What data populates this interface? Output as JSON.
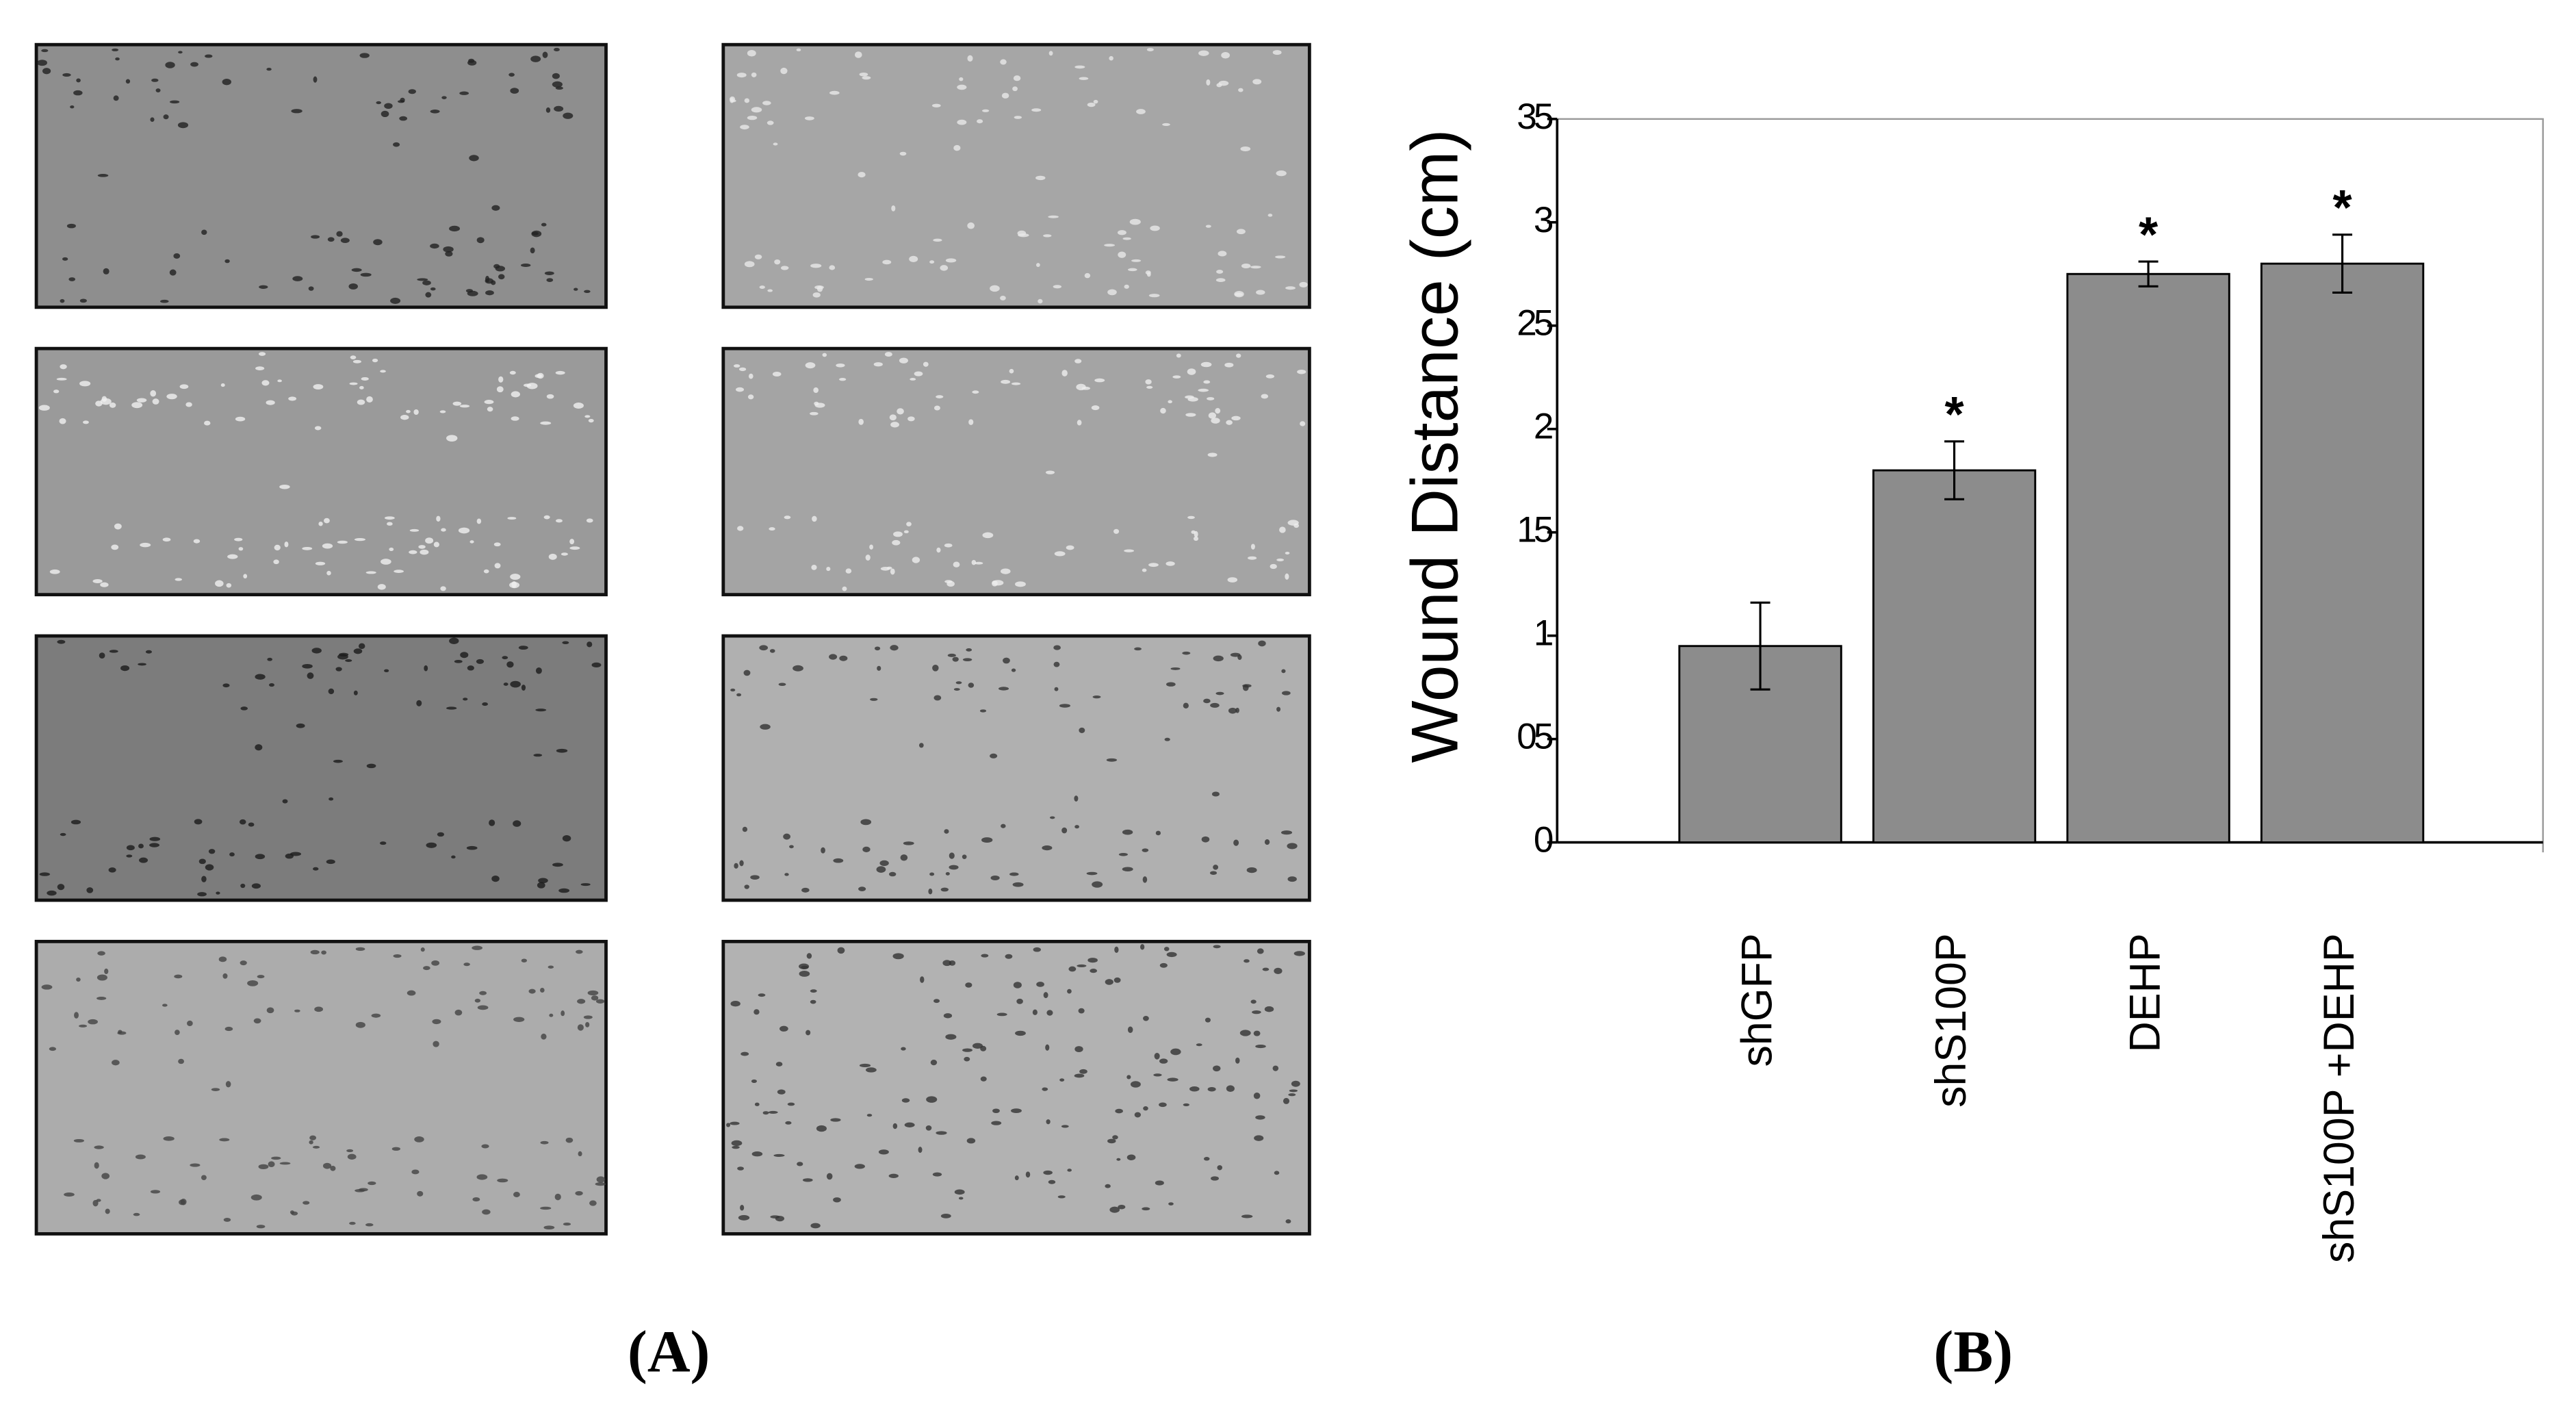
{
  "chart_data": {
    "type": "bar",
    "y_label": "Wound Distance (cm)",
    "categories": [
      "shGFP",
      "shS100P",
      "DEHP",
      "shS100P +DEHP"
    ],
    "values": [
      0.95,
      1.8,
      2.75,
      2.8
    ],
    "errors": [
      0.21,
      0.14,
      0.06,
      0.14
    ],
    "markers": [
      null,
      "*",
      "*",
      "*"
    ],
    "color": "#8c8c8c",
    "ylim": [
      0,
      3.5
    ],
    "yticks": [
      0,
      {
        "value": 0.5,
        "label": "05"
      },
      1,
      {
        "value": 1.5,
        "label": "15"
      },
      2,
      {
        "value": 2.5,
        "label": "25"
      },
      3,
      {
        "value": 3.5,
        "label": "35"
      }
    ],
    "panel_labels": [
      "(A)",
      "(B)"
    ]
  }
}
